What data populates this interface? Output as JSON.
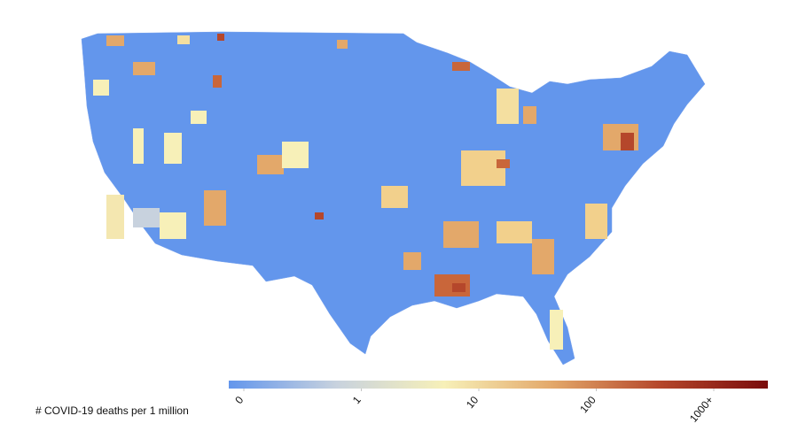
{
  "legend": {
    "title": "# COVID-19 deaths per 1 million",
    "ticks": [
      0,
      1,
      10,
      100,
      {
        "value": 1000,
        "label": "1000+"
      }
    ],
    "colors": [
      "#6396ec",
      "#c8d2de",
      "#f7f0b8",
      "#e3a86a",
      "#b5472b",
      "#7a0c0c"
    ]
  }
}
